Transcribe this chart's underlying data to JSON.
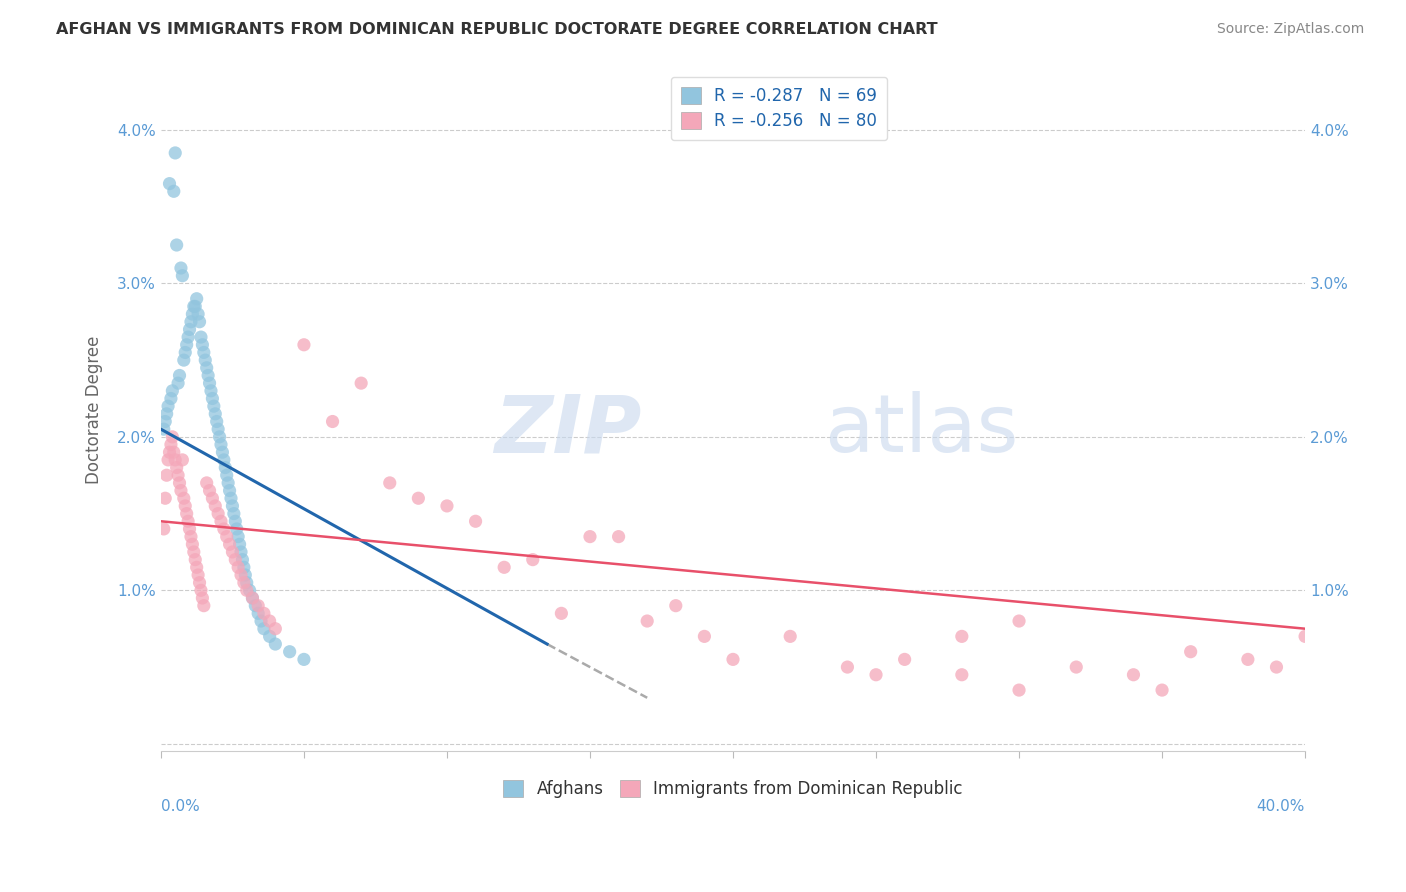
{
  "title": "AFGHAN VS IMMIGRANTS FROM DOMINICAN REPUBLIC DOCTORATE DEGREE CORRELATION CHART",
  "source": "Source: ZipAtlas.com",
  "ylabel": "Doctorate Degree",
  "ytick_labels": [
    "",
    "1.0%",
    "2.0%",
    "3.0%",
    "4.0%"
  ],
  "ytick_vals": [
    0.0,
    1.0,
    2.0,
    3.0,
    4.0
  ],
  "xlim": [
    0.0,
    40.0
  ],
  "ylim": [
    -0.05,
    4.4
  ],
  "legend_label1": "R = -0.287   N = 69",
  "legend_label2": "R = -0.256   N = 80",
  "legend_xlabel1": "Afghans",
  "legend_xlabel2": "Immigrants from Dominican Republic",
  "color_afghan": "#92c5de",
  "color_dr": "#f4a7b9",
  "color_line_afghan": "#2166ac",
  "color_line_dr": "#e8506a",
  "watermark_zip": "ZIP",
  "watermark_atlas": "atlas",
  "afghan_x": [
    0.1,
    0.15,
    0.2,
    0.25,
    0.3,
    0.35,
    0.4,
    0.45,
    0.5,
    0.55,
    0.6,
    0.65,
    0.7,
    0.75,
    0.8,
    0.85,
    0.9,
    0.95,
    1.0,
    1.05,
    1.1,
    1.15,
    1.2,
    1.25,
    1.3,
    1.35,
    1.4,
    1.45,
    1.5,
    1.55,
    1.6,
    1.65,
    1.7,
    1.75,
    1.8,
    1.85,
    1.9,
    1.95,
    2.0,
    2.05,
    2.1,
    2.15,
    2.2,
    2.25,
    2.3,
    2.35,
    2.4,
    2.45,
    2.5,
    2.55,
    2.6,
    2.65,
    2.7,
    2.75,
    2.8,
    2.85,
    2.9,
    2.95,
    3.0,
    3.1,
    3.2,
    3.3,
    3.4,
    3.5,
    3.6,
    3.8,
    4.0,
    4.5,
    5.0
  ],
  "afghan_y": [
    2.05,
    2.1,
    2.15,
    2.2,
    3.65,
    2.25,
    2.3,
    3.6,
    3.85,
    3.25,
    2.35,
    2.4,
    3.1,
    3.05,
    2.5,
    2.55,
    2.6,
    2.65,
    2.7,
    2.75,
    2.8,
    2.85,
    2.85,
    2.9,
    2.8,
    2.75,
    2.65,
    2.6,
    2.55,
    2.5,
    2.45,
    2.4,
    2.35,
    2.3,
    2.25,
    2.2,
    2.15,
    2.1,
    2.05,
    2.0,
    1.95,
    1.9,
    1.85,
    1.8,
    1.75,
    1.7,
    1.65,
    1.6,
    1.55,
    1.5,
    1.45,
    1.4,
    1.35,
    1.3,
    1.25,
    1.2,
    1.15,
    1.1,
    1.05,
    1.0,
    0.95,
    0.9,
    0.85,
    0.8,
    0.75,
    0.7,
    0.65,
    0.6,
    0.55
  ],
  "dr_x": [
    0.1,
    0.15,
    0.2,
    0.25,
    0.3,
    0.35,
    0.4,
    0.45,
    0.5,
    0.55,
    0.6,
    0.65,
    0.7,
    0.75,
    0.8,
    0.85,
    0.9,
    0.95,
    1.0,
    1.05,
    1.1,
    1.15,
    1.2,
    1.25,
    1.3,
    1.35,
    1.4,
    1.45,
    1.5,
    1.6,
    1.7,
    1.8,
    1.9,
    2.0,
    2.1,
    2.2,
    2.3,
    2.4,
    2.5,
    2.6,
    2.7,
    2.8,
    2.9,
    3.0,
    3.2,
    3.4,
    3.6,
    3.8,
    4.0,
    5.0,
    6.0,
    7.0,
    8.0,
    9.0,
    10.0,
    11.0,
    12.0,
    13.0,
    14.0,
    15.0,
    16.0,
    17.0,
    18.0,
    19.0,
    20.0,
    22.0,
    24.0,
    25.0,
    26.0,
    28.0,
    30.0,
    32.0,
    34.0,
    35.0,
    36.0,
    38.0,
    39.0,
    40.0,
    28.0,
    30.0
  ],
  "dr_y": [
    1.4,
    1.6,
    1.75,
    1.85,
    1.9,
    1.95,
    2.0,
    1.9,
    1.85,
    1.8,
    1.75,
    1.7,
    1.65,
    1.85,
    1.6,
    1.55,
    1.5,
    1.45,
    1.4,
    1.35,
    1.3,
    1.25,
    1.2,
    1.15,
    1.1,
    1.05,
    1.0,
    0.95,
    0.9,
    1.7,
    1.65,
    1.6,
    1.55,
    1.5,
    1.45,
    1.4,
    1.35,
    1.3,
    1.25,
    1.2,
    1.15,
    1.1,
    1.05,
    1.0,
    0.95,
    0.9,
    0.85,
    0.8,
    0.75,
    2.6,
    2.1,
    2.35,
    1.7,
    1.6,
    1.55,
    1.45,
    1.15,
    1.2,
    0.85,
    1.35,
    1.35,
    0.8,
    0.9,
    0.7,
    0.55,
    0.7,
    0.5,
    0.45,
    0.55,
    0.45,
    0.35,
    0.5,
    0.45,
    0.35,
    0.6,
    0.55,
    0.5,
    0.7,
    0.7,
    0.8
  ],
  "afghan_line_x0": 0.0,
  "afghan_line_y0": 2.05,
  "afghan_line_x1": 13.5,
  "afghan_line_y1": 0.65,
  "afghan_dash_x0": 13.5,
  "afghan_dash_y0": 0.65,
  "afghan_dash_x1": 17.0,
  "afghan_dash_y1": 0.3,
  "dr_line_x0": 0.0,
  "dr_line_y0": 1.45,
  "dr_line_x1": 40.0,
  "dr_line_y1": 0.75
}
